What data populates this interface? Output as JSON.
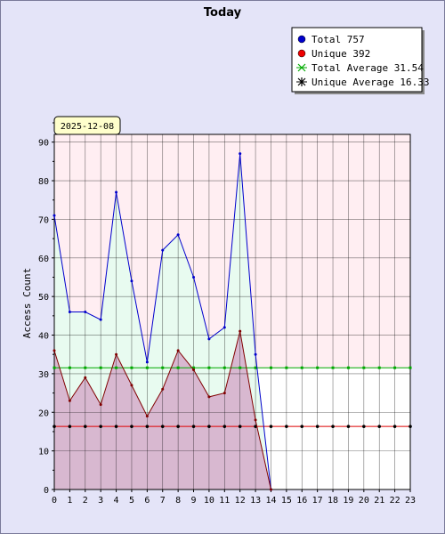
{
  "chart_data": {
    "type": "line",
    "title": "Today",
    "ylabel": "Access Count",
    "xlabel": "",
    "date_label": "2025-12-08",
    "x": [
      0,
      1,
      2,
      3,
      4,
      5,
      6,
      7,
      8,
      9,
      10,
      11,
      12,
      13,
      14
    ],
    "x_ticks": [
      "0",
      "1",
      "2",
      "3",
      "4",
      "5",
      "6",
      "7",
      "8",
      "9",
      "10",
      "11",
      "12",
      "13",
      "14",
      "15",
      "16",
      "17",
      "18",
      "19",
      "20",
      "21",
      "22",
      "23"
    ],
    "xlim": [
      0,
      23
    ],
    "ylim": [
      0,
      92
    ],
    "y_ticks": [
      "0",
      "10",
      "20",
      "30",
      "40",
      "50",
      "60",
      "70",
      "80",
      "90"
    ],
    "grid": true,
    "legend_position": "top-right",
    "series": [
      {
        "name": "Total 757",
        "color": "#0000cc",
        "fill": "#e8fbf0",
        "marker": "dot",
        "values": [
          71,
          46,
          46,
          44,
          77,
          54,
          33,
          62,
          66,
          55,
          39,
          42,
          87,
          35,
          0
        ]
      },
      {
        "name": "Unique 392",
        "color": "#800000",
        "fill": "#d8b8d0",
        "marker": "dot",
        "values": [
          36,
          23,
          29,
          22,
          35,
          27,
          19,
          26,
          36,
          31,
          24,
          25,
          41,
          18,
          0
        ]
      }
    ],
    "averages": [
      {
        "name": "Total Average 31.54",
        "value": 31.54,
        "color": "#00aa00"
      },
      {
        "name": "Unique Average 16.33",
        "value": 16.33,
        "color": "#dd0000"
      }
    ],
    "colors": {
      "upper_band": "#ffeef2",
      "lower_band": "#ffffff",
      "grid": "#000000",
      "legend_total": "#0000cc",
      "legend_unique": "#ee0000",
      "legend_total_avg": "#00aa00",
      "legend_unique_avg": "#000000"
    }
  }
}
